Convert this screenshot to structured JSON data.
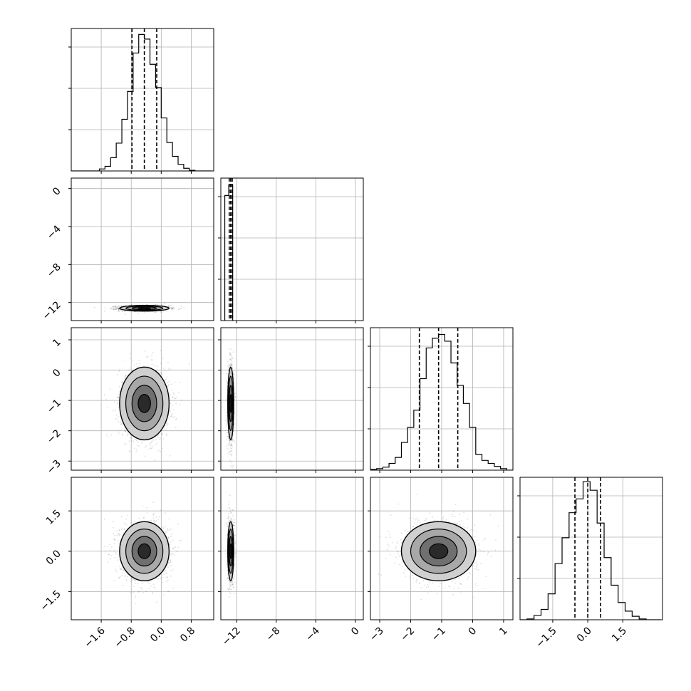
{
  "chart_data": {
    "type": "corner",
    "grid": true,
    "x_axes": [
      {
        "range": [
          -2.4,
          1.4
        ],
        "ticks": [
          -1.6,
          -0.8,
          0.0,
          0.8
        ],
        "tick_labels": [
          "−1.6",
          "−0.8",
          "0.0",
          "0.8"
        ]
      },
      {
        "range": [
          -13.6,
          0.8
        ],
        "ticks": [
          -12,
          -8,
          -4,
          0
        ],
        "tick_labels": [
          "−12",
          "−8",
          "−4",
          "0"
        ]
      },
      {
        "range": [
          -3.3,
          1.3
        ],
        "ticks": [
          -3,
          -2,
          -1,
          0,
          1
        ],
        "tick_labels": [
          "−3",
          "−2",
          "−1",
          "0",
          "1"
        ]
      },
      {
        "range": [
          -2.9,
          3.2
        ],
        "ticks": [
          -1.5,
          0.0,
          1.5
        ],
        "tick_labels": [
          "−1.5",
          "0.0",
          "1.5"
        ]
      }
    ],
    "y_axes": [
      null,
      {
        "range": [
          -13.9,
          1.1
        ],
        "ticks": [
          0,
          -4,
          -8,
          -12
        ],
        "tick_labels": [
          "0",
          "−4",
          "−8",
          "−12"
        ]
      },
      {
        "range": [
          -3.3,
          1.4
        ],
        "ticks": [
          1,
          0,
          -1,
          -2,
          -3
        ],
        "tick_labels": [
          "1",
          "0",
          "−1",
          "−2",
          "−3"
        ]
      },
      {
        "range": [
          -2.55,
          2.75
        ],
        "ticks": [
          1.5,
          0.0,
          -1.5
        ],
        "tick_labels": [
          "1.5",
          "0.0",
          "−1.5"
        ]
      }
    ],
    "parameters": [
      {
        "mean": -0.45,
        "sd": 0.33,
        "quantiles": [
          -0.78,
          -0.45,
          -0.12
        ]
      },
      {
        "mean": -12.6,
        "sd": 0.15,
        "quantiles": [
          -12.75,
          -12.6,
          -12.45
        ]
      },
      {
        "mean": -1.1,
        "sd": 0.6,
        "quantiles": [
          -1.72,
          -1.1,
          -0.48
        ]
      },
      {
        "mean": 0.0,
        "sd": 0.55,
        "quantiles": [
          -0.55,
          0.0,
          0.55
        ]
      }
    ],
    "histograms": [
      {
        "edges": [
          -2.4,
          -2.25,
          -2.1,
          -1.95,
          -1.8,
          -1.65,
          -1.5,
          -1.35,
          -1.2,
          -1.05,
          -0.9,
          -0.75,
          -0.6,
          -0.45,
          -0.3,
          -0.15,
          0.0,
          0.15,
          0.3,
          0.45,
          0.6,
          0.75,
          0.9,
          1.05,
          1.2,
          1.35
        ],
        "counts": [
          0,
          0,
          0,
          0,
          0,
          3,
          7,
          20,
          42,
          78,
          120,
          178,
          206,
          199,
          161,
          126,
          80,
          43,
          22,
          10,
          4,
          1,
          0,
          0,
          0
        ],
        "ymax": 215
      },
      {
        "edges": [
          -13.2,
          -12.8,
          -12.4
        ],
        "counts": [
          180,
          195
        ],
        "ymax": 205
      },
      {
        "edges": [
          -3.3,
          -3.1,
          -2.9,
          -2.7,
          -2.5,
          -2.3,
          -2.1,
          -1.9,
          -1.7,
          -1.5,
          -1.3,
          -1.1,
          -0.9,
          -0.7,
          -0.5,
          -0.3,
          -0.1,
          0.1,
          0.3,
          0.5,
          0.7,
          0.9,
          1.1,
          1.3
        ],
        "counts": [
          1,
          2,
          4,
          9,
          17,
          37,
          57,
          80,
          122,
          163,
          176,
          181,
          172,
          143,
          113,
          89,
          57,
          21,
          13,
          9,
          5,
          2,
          0
        ],
        "ymax": 190
      },
      {
        "edges": [
          -2.9,
          -2.6,
          -2.3,
          -2.0,
          -1.7,
          -1.4,
          -1.1,
          -0.8,
          -0.5,
          -0.2,
          0.1,
          0.4,
          0.7,
          1.0,
          1.3,
          1.6,
          1.9,
          2.2,
          2.5,
          2.8,
          3.1
        ],
        "counts": [
          0,
          1,
          5,
          12,
          30,
          65,
          95,
          124,
          140,
          160,
          150,
          112,
          72,
          40,
          20,
          10,
          4,
          1,
          0,
          0
        ],
        "ymax": 165
      }
    ]
  }
}
